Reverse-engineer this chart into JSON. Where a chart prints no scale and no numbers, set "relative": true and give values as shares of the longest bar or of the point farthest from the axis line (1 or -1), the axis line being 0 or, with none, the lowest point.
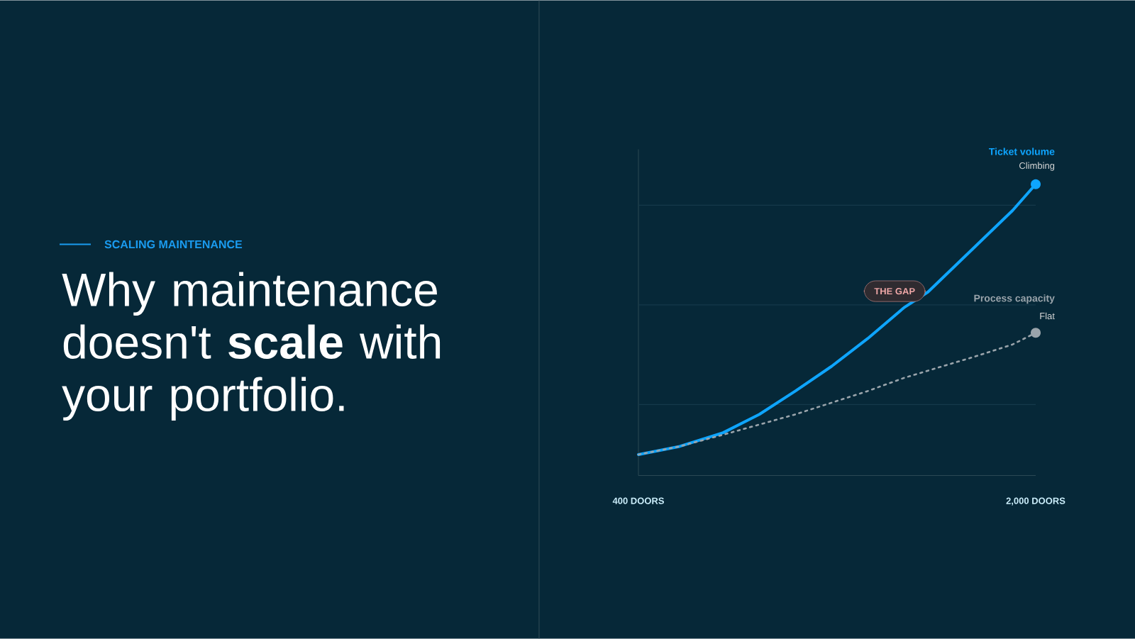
{
  "chart_data": {
    "type": "line",
    "title": "Why maintenance doesn't **scale** with your portfolio.",
    "subtitle": "SCALING MAINTENANCE",
    "relative": true,
    "x": [
      400,
      566,
      741,
      887,
      1032,
      1178,
      1323,
      1469,
      1566,
      1761,
      1907,
      2000
    ],
    "xlim": [
      400,
      2000
    ],
    "xticks": [
      {
        "value": 400,
        "label": "400 DOORS"
      },
      {
        "value": 2000,
        "label": "2,000 DOORS"
      }
    ],
    "series": [
      {
        "name": "Ticket volume",
        "color": "#0ea5ff",
        "line_style": "solid",
        "values": [
          0.072,
          0.1,
          0.147,
          0.21,
          0.29,
          0.375,
          0.47,
          0.576,
          0.63,
          0.79,
          0.91,
          1.0
        ]
      },
      {
        "name": "Process capacity",
        "color": "#9aa4ab",
        "line_style": "dotted",
        "values": [
          0.072,
          0.1,
          0.14,
          0.175,
          0.21,
          0.25,
          0.29,
          0.335,
          0.36,
          0.41,
          0.45,
          0.49
        ]
      }
    ],
    "ref_lines": [
      {
        "axis": "y",
        "value": 0.244,
        "color": "#15394a"
      },
      {
        "axis": "y",
        "value": 0.586,
        "color": "#15394a"
      },
      {
        "axis": "y",
        "value": 0.928,
        "color": "#15394a"
      }
    ],
    "annotations": [
      {
        "text": "Climbing",
        "x": 2000,
        "y": 1.0
      },
      {
        "text": "Flat",
        "x": 2000,
        "y": 0.49
      },
      "THE GAP"
    ]
  }
}
